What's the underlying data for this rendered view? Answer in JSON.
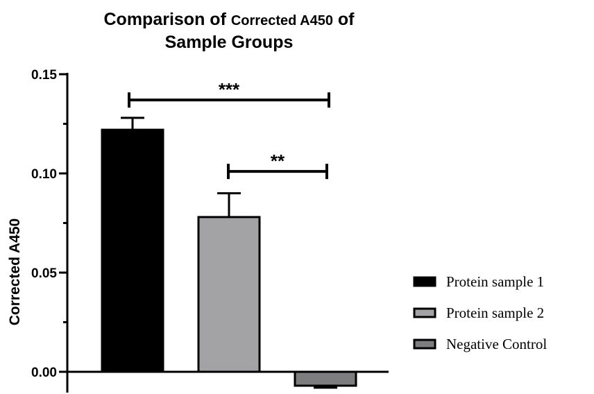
{
  "chart_data": {
    "type": "bar",
    "title_part1": "Comparison of ",
    "title_part2": "Corrected A450",
    "title_part3": " of",
    "title_line2": "Sample Groups",
    "xlabel": "",
    "ylabel": "Corrected A450",
    "ylim": [
      0.0,
      0.15
    ],
    "yticks": [
      "0.00",
      "0.05",
      "0.10",
      "0.15"
    ],
    "legend_position": "right",
    "series": [
      {
        "name": "Protein sample 1",
        "value": 0.122,
        "error": 0.006,
        "color": "#000000"
      },
      {
        "name": "Protein sample 2",
        "value": 0.078,
        "error": 0.012,
        "color": "#a3a3a6"
      },
      {
        "name": "Negative Control",
        "value": -0.007,
        "error": 0.001,
        "color": "#7d7d7f"
      }
    ],
    "significance": [
      {
        "from": 0,
        "to": 2,
        "label": "***",
        "y": 0.137
      },
      {
        "from": 1,
        "to": 2,
        "label": "**",
        "y": 0.101
      }
    ]
  }
}
